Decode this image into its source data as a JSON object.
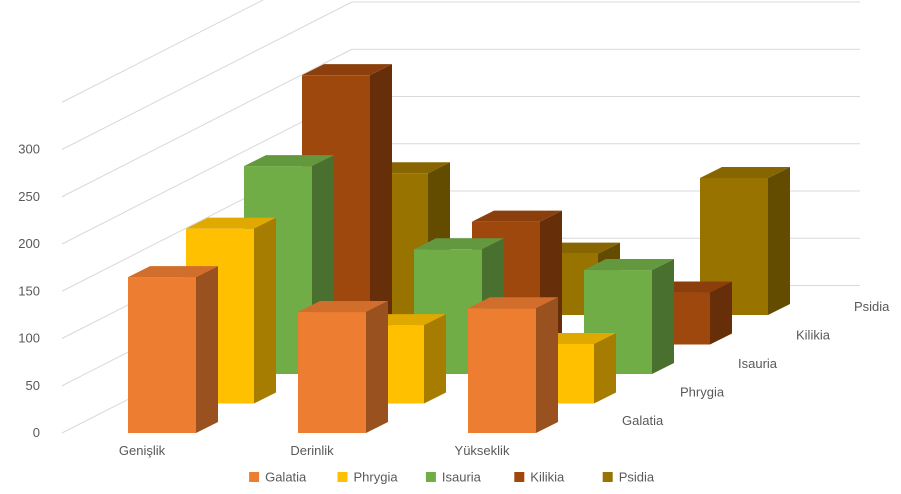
{
  "chart_data": {
    "type": "bar",
    "title": "",
    "xlabel": "",
    "ylabel": "",
    "ylim": [
      0,
      300
    ],
    "yticks": [
      0,
      50,
      100,
      150,
      200,
      250,
      300
    ],
    "categories": [
      "Genişlik",
      "Derinlik",
      "Yükseklik"
    ],
    "series": [
      {
        "name": "Galatia",
        "values": [
          165,
          128,
          132
        ],
        "color": "#ED7D31"
      },
      {
        "name": "Phrygia",
        "values": [
          185,
          83,
          63
        ],
        "color": "#FFC000"
      },
      {
        "name": "Isauria",
        "values": [
          220,
          132,
          110
        ],
        "color": "#70AD47"
      },
      {
        "name": "Kilikia",
        "values": [
          285,
          130,
          55
        ],
        "color": "#9E480E"
      },
      {
        "name": "Psidia",
        "values": [
          150,
          65,
          145
        ],
        "color": "#997300"
      }
    ],
    "grid": true,
    "legend_position": "bottom",
    "style": "3d-column"
  }
}
